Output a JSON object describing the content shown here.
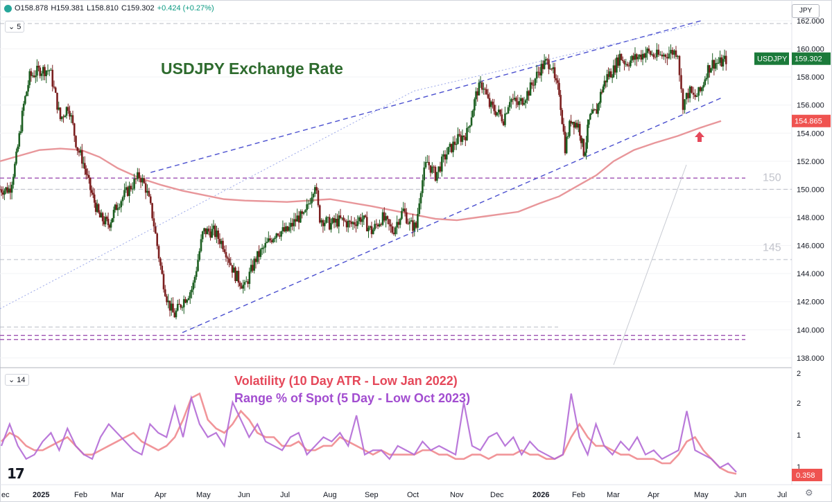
{
  "header": {
    "open": "O158.878",
    "high": "H159.381",
    "low": "L158.810",
    "close": "C159.302",
    "change": "+0.424 (+0.27%)",
    "interval_badge": "5",
    "indicator_badge": "14",
    "currency_button": "JPY",
    "logo": "17"
  },
  "colors": {
    "candle_up": "#1b5e20",
    "candle_down": "#7b1f1f",
    "ma": "#e8969a",
    "channel": "#4a4fcf",
    "support": "#9c4fb0",
    "atr": "#f08a8e",
    "range": "#b26ad6",
    "title": "#2e6b2e"
  },
  "labels": {
    "level_150": "150",
    "level_145": "145",
    "price_tag": "USDJPY",
    "price_value": "159.302",
    "ma_value": "154.865",
    "ind_value": "0.358"
  },
  "chart_data": [
    {
      "type": "candlestick",
      "title": "USDJPY Exchange Rate",
      "ylim": [
        137.5,
        162
      ],
      "y_ticks": [
        "162.000",
        "160.000",
        "158.000",
        "156.000",
        "154.000",
        "152.000",
        "150.000",
        "148.000",
        "146.000",
        "144.000",
        "142.000",
        "140.000",
        "138.000"
      ],
      "x_ticks": [
        "ec",
        "2025",
        "Feb",
        "Mar",
        "Apr",
        "May",
        "Jun",
        "Jul",
        "Aug",
        "Sep",
        "Oct",
        "Nov",
        "Dec",
        "2026",
        "Feb",
        "Mar",
        "Apr",
        "May",
        "Jun",
        "Jul"
      ],
      "close_path": [
        [
          0,
          150
        ],
        [
          0.5,
          150
        ],
        [
          0.8,
          152
        ],
        [
          1.2,
          156
        ],
        [
          1.5,
          158
        ],
        [
          2,
          158.5
        ],
        [
          2.5,
          158.5
        ],
        [
          3,
          155
        ],
        [
          3.4,
          156
        ],
        [
          3.8,
          153
        ],
        [
          4.1,
          152
        ],
        [
          4.5,
          150
        ],
        [
          5,
          148
        ],
        [
          5.5,
          147.5
        ],
        [
          6,
          149
        ],
        [
          6.5,
          150
        ],
        [
          7,
          151
        ],
        [
          7.3,
          150
        ],
        [
          7.6,
          148
        ],
        [
          8,
          144
        ],
        [
          8.3,
          142
        ],
        [
          8.6,
          141
        ],
        [
          9,
          142
        ],
        [
          9.5,
          143
        ],
        [
          10,
          147
        ],
        [
          10.5,
          147
        ],
        [
          11,
          146
        ],
        [
          11.5,
          144
        ],
        [
          12,
          143
        ],
        [
          12.5,
          145
        ],
        [
          13,
          146
        ],
        [
          13.5,
          147
        ],
        [
          14,
          147
        ],
        [
          14.5,
          148
        ],
        [
          14.8,
          148
        ],
        [
          15,
          149
        ],
        [
          15.3,
          150.5
        ],
        [
          15.5,
          148
        ],
        [
          16,
          147.5
        ],
        [
          16.5,
          147.8
        ],
        [
          17,
          147.5
        ],
        [
          17.5,
          148
        ],
        [
          18,
          147
        ],
        [
          18.5,
          148
        ],
        [
          19,
          147
        ],
        [
          19.3,
          148
        ],
        [
          19.5,
          148.5
        ],
        [
          19.8,
          147.5
        ],
        [
          20.1,
          147.3
        ],
        [
          20.3,
          150
        ],
        [
          20.6,
          152
        ],
        [
          21,
          151
        ],
        [
          21.5,
          152.5
        ],
        [
          22,
          153.5
        ],
        [
          22.5,
          154
        ],
        [
          23,
          157
        ],
        [
          23.3,
          157.5
        ],
        [
          23.6,
          156
        ],
        [
          24,
          155.5
        ],
        [
          24.3,
          155
        ],
        [
          24.6,
          156.5
        ],
        [
          25,
          156
        ],
        [
          25.5,
          157
        ],
        [
          26,
          158.5
        ],
        [
          26.3,
          159
        ],
        [
          26.6,
          159
        ],
        [
          26.8,
          157.5
        ],
        [
          27,
          157
        ],
        [
          27.3,
          153
        ],
        [
          27.6,
          155
        ],
        [
          28,
          154.5
        ],
        [
          28.3,
          152.5
        ],
        [
          28.6,
          155
        ],
        [
          29,
          155.5
        ],
        [
          29.3,
          157
        ],
        [
          29.6,
          158
        ],
        [
          30,
          158.5
        ],
        [
          30.3,
          159.5
        ],
        [
          30.6,
          159
        ],
        [
          31,
          159.3
        ],
        [
          31.3,
          159.5
        ],
        [
          31.6,
          159.8
        ],
        [
          32,
          159.5
        ],
        [
          32.3,
          159.5
        ],
        [
          32.6,
          159.7
        ],
        [
          32.8,
          159.8
        ],
        [
          33,
          159.8
        ],
        [
          33.2,
          156
        ],
        [
          33.5,
          157
        ],
        [
          33.7,
          156.5
        ],
        [
          34,
          157
        ],
        [
          34.3,
          158.5
        ],
        [
          34.6,
          159
        ],
        [
          35,
          159
        ],
        [
          35.3,
          159.3
        ]
      ],
      "series": [
        {
          "name": "",
          "kind": "moving-average",
          "points": [
            [
              0,
              152
            ],
            [
              2,
              152.8
            ],
            [
              3,
              152.9
            ],
            [
              4,
              152.8
            ],
            [
              5,
              152.3
            ],
            [
              6,
              151.5
            ],
            [
              7,
              150.8
            ],
            [
              8,
              150.3
            ],
            [
              9,
              149.9
            ],
            [
              10,
              149.6
            ],
            [
              11,
              149.3
            ],
            [
              12,
              149.2
            ],
            [
              14,
              149.1
            ],
            [
              16,
              149.3
            ],
            [
              18,
              148.8
            ],
            [
              20,
              148.2
            ],
            [
              21,
              147.9
            ],
            [
              22,
              147.8
            ],
            [
              23,
              148
            ],
            [
              25,
              148.4
            ],
            [
              26,
              149
            ],
            [
              27,
              149.5
            ],
            [
              28,
              150.3
            ],
            [
              29,
              151
            ],
            [
              30,
              152
            ],
            [
              31,
              152.8
            ],
            [
              32,
              153.3
            ],
            [
              33,
              153.8
            ],
            [
              34,
              154.4
            ],
            [
              35,
              154.865
            ]
          ]
        },
        {
          "name": "",
          "kind": "upper-channel",
          "points": [
            [
              7.5,
              151.2
            ],
            [
              34,
              162
            ]
          ]
        },
        {
          "name": "",
          "kind": "lower-channel",
          "points": [
            [
              9,
              139.8
            ],
            [
              35,
              156.5
            ]
          ]
        },
        {
          "name": "",
          "kind": "extended-channel",
          "points": [
            [
              0,
              141.5
            ],
            [
              20,
              157
            ],
            [
              34,
              161.8
            ]
          ]
        }
      ],
      "support_levels": [
        150.8,
        139.3,
        139.6
      ],
      "reference_levels": [
        150,
        145,
        140.2,
        161.8
      ]
    },
    {
      "type": "line",
      "series": [
        {
          "name": "Volatility (10 Day ATR - Low Jan 2022)",
          "values": [
            1.1,
            1.3,
            1.2,
            1.0,
            0.9,
            0.9,
            1.0,
            1.1,
            1.2,
            1.0,
            0.8,
            0.8,
            0.9,
            1.0,
            1.1,
            1.2,
            1.3,
            1.1,
            1.0,
            0.9,
            1.0,
            1.2,
            1.6,
            2.1,
            2.2,
            1.6,
            1.4,
            1.3,
            1.5,
            1.8,
            1.6,
            1.3,
            1.2,
            1.2,
            1.0,
            1.0,
            1.1,
            0.9,
            0.9,
            1.0,
            1.0,
            1.2,
            1.1,
            1.0,
            0.9,
            0.8,
            0.9,
            0.8,
            0.8,
            0.8,
            0.8,
            0.9,
            0.9,
            0.8,
            0.8,
            0.7,
            0.7,
            0.8,
            0.8,
            0.7,
            0.8,
            0.8,
            0.8,
            0.9,
            0.8,
            0.8,
            0.7,
            0.7,
            0.8,
            1.2,
            1.5,
            1.2,
            1.0,
            1.0,
            0.9,
            0.8,
            0.8,
            0.7,
            0.7,
            0.7,
            0.6,
            0.6,
            0.8,
            1.1,
            1.2,
            0.9,
            0.7,
            0.5,
            0.4,
            0.358
          ]
        },
        {
          "name": "Range % of Spot (5 Day - Low Oct 2023)",
          "values": [
            1.0,
            1.5,
            1.0,
            0.7,
            0.8,
            1.1,
            1.3,
            0.9,
            1.4,
            1.0,
            0.8,
            0.7,
            1.2,
            1.5,
            1.3,
            1.1,
            0.9,
            0.8,
            1.5,
            1.3,
            1.2,
            1.9,
            1.2,
            2.1,
            1.5,
            1.2,
            1.3,
            1.0,
            2.0,
            1.6,
            1.2,
            1.5,
            1.1,
            1.0,
            0.9,
            1.2,
            1.3,
            0.8,
            1.0,
            1.2,
            1.1,
            1.3,
            1.0,
            1.7,
            0.8,
            0.9,
            0.9,
            0.7,
            1.0,
            0.9,
            0.8,
            1.1,
            0.9,
            1.0,
            0.9,
            0.8,
            2.0,
            1.0,
            0.9,
            1.2,
            1.3,
            1.0,
            1.2,
            0.8,
            1.1,
            0.9,
            0.8,
            0.7,
            0.8,
            2.2,
            1.2,
            0.8,
            1.5,
            1.0,
            0.8,
            1.1,
            0.9,
            1.2,
            0.8,
            0.9,
            0.7,
            0.8,
            0.9,
            1.8,
            0.9,
            0.8,
            0.7,
            0.5,
            0.6,
            0.4
          ]
        }
      ],
      "ylim": [
        0.3,
        2.7
      ],
      "y_ticks": [
        "2",
        "2",
        "1",
        "1"
      ]
    }
  ]
}
